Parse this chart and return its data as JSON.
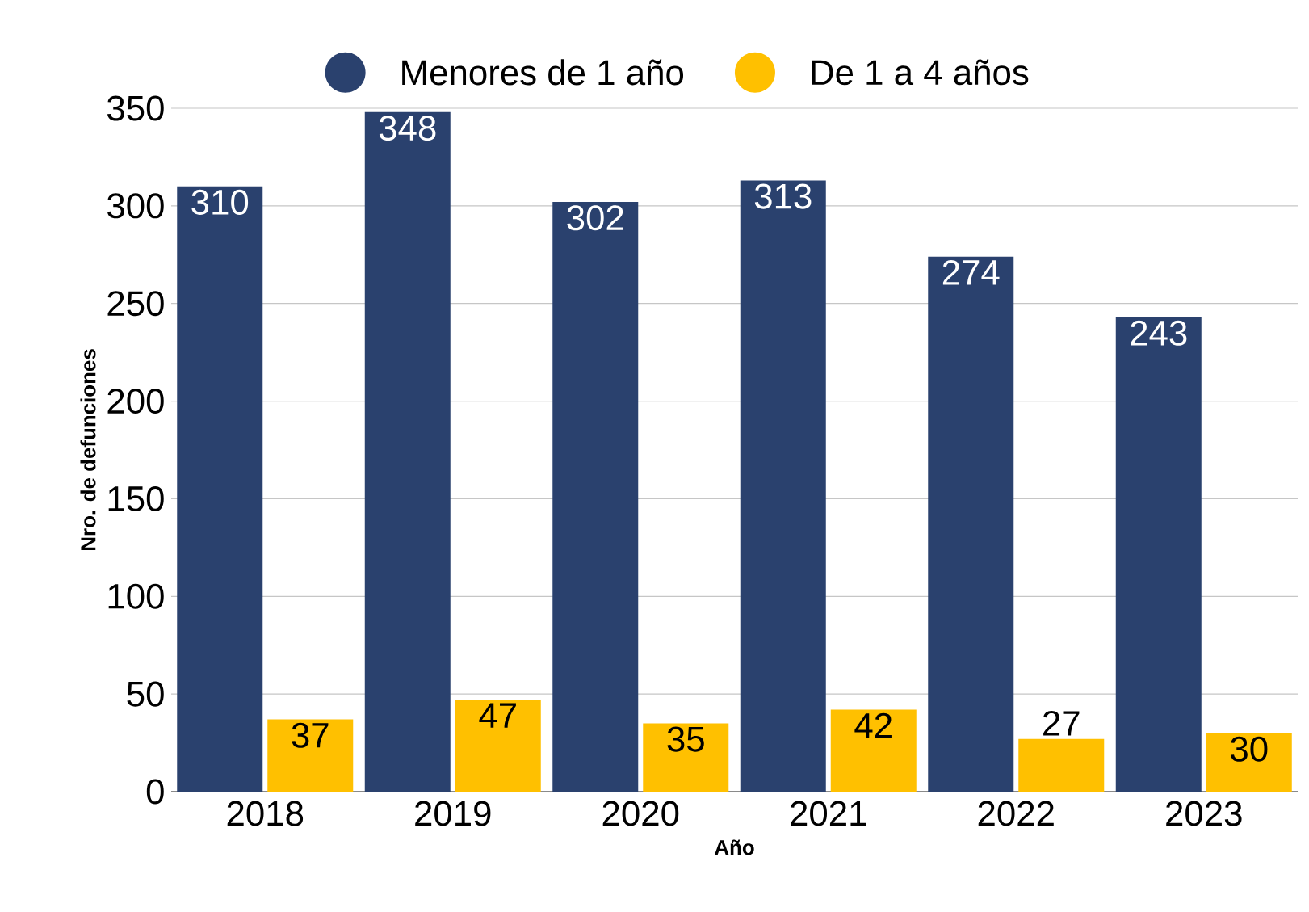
{
  "chart_data": {
    "type": "bar",
    "xlabel": "Año",
    "ylabel": "Nro. de defunciones",
    "categories": [
      "2018",
      "2019",
      "2020",
      "2021",
      "2022",
      "2023"
    ],
    "series": [
      {
        "name": "Menores de 1 año",
        "color": "#2a416e",
        "values": [
          310,
          348,
          302,
          313,
          274,
          243
        ]
      },
      {
        "name": "De 1 a 4 años",
        "color": "#ffc000",
        "values": [
          37,
          47,
          35,
          42,
          27,
          30
        ]
      }
    ],
    "ylim": [
      0,
      350
    ],
    "yticks": [
      0,
      50,
      100,
      150,
      200,
      250,
      300,
      350
    ],
    "grid": "y",
    "legend": "top",
    "data_labels": true
  }
}
